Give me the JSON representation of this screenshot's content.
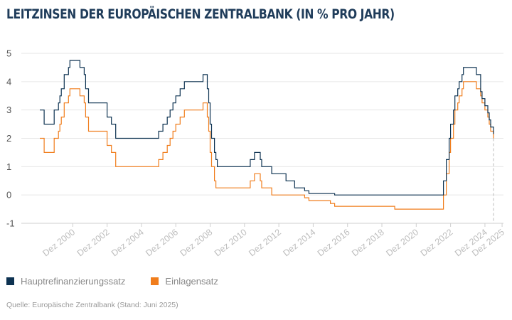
{
  "title": "LEITZINSEN DER EUROPÄISCHEN ZENTRALBANK (IN % PRO JAHR)",
  "source": "Quelle: Europäische Zentralbank (Stand: Juni 2025)",
  "legend": [
    {
      "label": "Hauptrefinanzierungssatz",
      "color": "#0d3251"
    },
    {
      "label": "Einlagensatz",
      "color": "#f07d1c"
    }
  ],
  "chart_data": {
    "type": "line",
    "title": "LEITZINSEN DER EUROPÄISCHEN ZENTRALBANK (IN % PRO JAHR)",
    "xlabel": "",
    "ylabel": "",
    "ylim": [
      -1,
      5
    ],
    "xlim": [
      "1998-09",
      "2025-06"
    ],
    "yticks": [
      -1,
      0,
      1,
      2,
      3,
      4,
      5
    ],
    "xticks": [
      {
        "label": "Dez 2000",
        "date": "2000-12"
      },
      {
        "label": "Dez 2002",
        "date": "2002-12"
      },
      {
        "label": "Dez 2004",
        "date": "2004-12"
      },
      {
        "label": "Dez 2006",
        "date": "2006-12"
      },
      {
        "label": "Dez 2008",
        "date": "2008-12"
      },
      {
        "label": "Dez 2010",
        "date": "2010-12"
      },
      {
        "label": "Dez 2012",
        "date": "2012-12"
      },
      {
        "label": "Dez 2014",
        "date": "2014-12"
      },
      {
        "label": "Dez 2016",
        "date": "2016-12"
      },
      {
        "label": "Dez 2018",
        "date": "2018-12"
      },
      {
        "label": "Dez 2020",
        "date": "2020-12"
      },
      {
        "label": "Dez 2022",
        "date": "2022-12"
      },
      {
        "label": "Dez 2024",
        "date": "2024-12"
      },
      {
        "label": "Dez 2025",
        "date": "2025-12"
      }
    ],
    "grid": "horizontal",
    "legend_position": "bottom-left",
    "marker_line_date": "2025-06",
    "series": [
      {
        "name": "Hauptrefinanzierungssatz",
        "color": "#0d3251",
        "points": [
          [
            "1999-01",
            3.0
          ],
          [
            "1999-04",
            2.5
          ],
          [
            "1999-11",
            3.0
          ],
          [
            "2000-02",
            3.25
          ],
          [
            "2000-03",
            3.5
          ],
          [
            "2000-04",
            3.75
          ],
          [
            "2000-06",
            4.25
          ],
          [
            "2000-09",
            4.5
          ],
          [
            "2000-10",
            4.75
          ],
          [
            "2001-05",
            4.5
          ],
          [
            "2001-08",
            4.25
          ],
          [
            "2001-09",
            3.75
          ],
          [
            "2001-11",
            3.25
          ],
          [
            "2002-12",
            2.75
          ],
          [
            "2003-03",
            2.5
          ],
          [
            "2003-06",
            2.0
          ],
          [
            "2005-12",
            2.25
          ],
          [
            "2006-03",
            2.5
          ],
          [
            "2006-06",
            2.75
          ],
          [
            "2006-08",
            3.0
          ],
          [
            "2006-10",
            3.25
          ],
          [
            "2006-12",
            3.5
          ],
          [
            "2007-03",
            3.75
          ],
          [
            "2007-06",
            4.0
          ],
          [
            "2008-07",
            4.25
          ],
          [
            "2008-10",
            3.75
          ],
          [
            "2008-11",
            3.25
          ],
          [
            "2008-12",
            2.5
          ],
          [
            "2009-01",
            2.0
          ],
          [
            "2009-03",
            1.5
          ],
          [
            "2009-04",
            1.25
          ],
          [
            "2009-05",
            1.0
          ],
          [
            "2011-04",
            1.25
          ],
          [
            "2011-07",
            1.5
          ],
          [
            "2011-11",
            1.25
          ],
          [
            "2011-12",
            1.0
          ],
          [
            "2012-07",
            0.75
          ],
          [
            "2013-05",
            0.5
          ],
          [
            "2013-11",
            0.25
          ],
          [
            "2014-06",
            0.15
          ],
          [
            "2014-09",
            0.05
          ],
          [
            "2016-03",
            0.0
          ],
          [
            "2022-07",
            0.5
          ],
          [
            "2022-09",
            1.25
          ],
          [
            "2022-11",
            2.0
          ],
          [
            "2022-12",
            2.5
          ],
          [
            "2023-02",
            3.0
          ],
          [
            "2023-03",
            3.5
          ],
          [
            "2023-05",
            3.75
          ],
          [
            "2023-06",
            4.0
          ],
          [
            "2023-08",
            4.25
          ],
          [
            "2023-09",
            4.5
          ],
          [
            "2024-06",
            4.25
          ],
          [
            "2024-09",
            3.65
          ],
          [
            "2024-10",
            3.4
          ],
          [
            "2024-12",
            3.15
          ],
          [
            "2025-02",
            2.9
          ],
          [
            "2025-03",
            2.65
          ],
          [
            "2025-04",
            2.4
          ],
          [
            "2025-06",
            2.15
          ]
        ]
      },
      {
        "name": "Einlagensatz",
        "color": "#f07d1c",
        "points": [
          [
            "1999-01",
            2.0
          ],
          [
            "1999-04",
            1.5
          ],
          [
            "1999-11",
            2.0
          ],
          [
            "2000-02",
            2.25
          ],
          [
            "2000-03",
            2.5
          ],
          [
            "2000-04",
            2.75
          ],
          [
            "2000-06",
            3.25
          ],
          [
            "2000-09",
            3.5
          ],
          [
            "2000-10",
            3.75
          ],
          [
            "2001-05",
            3.5
          ],
          [
            "2001-08",
            3.25
          ],
          [
            "2001-09",
            2.75
          ],
          [
            "2001-11",
            2.25
          ],
          [
            "2002-12",
            1.75
          ],
          [
            "2003-03",
            1.5
          ],
          [
            "2003-06",
            1.0
          ],
          [
            "2005-12",
            1.25
          ],
          [
            "2006-03",
            1.5
          ],
          [
            "2006-06",
            1.75
          ],
          [
            "2006-08",
            2.0
          ],
          [
            "2006-10",
            2.25
          ],
          [
            "2006-12",
            2.5
          ],
          [
            "2007-03",
            2.75
          ],
          [
            "2007-06",
            3.0
          ],
          [
            "2008-07",
            3.25
          ],
          [
            "2008-10",
            2.75
          ],
          [
            "2008-11",
            2.25
          ],
          [
            "2008-12",
            1.5
          ],
          [
            "2009-01",
            1.0
          ],
          [
            "2009-03",
            0.5
          ],
          [
            "2009-04",
            0.25
          ],
          [
            "2011-04",
            0.5
          ],
          [
            "2011-07",
            0.75
          ],
          [
            "2011-11",
            0.5
          ],
          [
            "2011-12",
            0.25
          ],
          [
            "2012-07",
            0.0
          ],
          [
            "2014-06",
            -0.1
          ],
          [
            "2014-09",
            -0.2
          ],
          [
            "2015-12",
            -0.3
          ],
          [
            "2016-03",
            -0.4
          ],
          [
            "2019-09",
            -0.5
          ],
          [
            "2022-07",
            0.0
          ],
          [
            "2022-09",
            0.75
          ],
          [
            "2022-11",
            1.5
          ],
          [
            "2022-12",
            2.0
          ],
          [
            "2023-02",
            2.5
          ],
          [
            "2023-03",
            3.0
          ],
          [
            "2023-05",
            3.25
          ],
          [
            "2023-06",
            3.5
          ],
          [
            "2023-08",
            3.75
          ],
          [
            "2023-09",
            4.0
          ],
          [
            "2024-06",
            3.75
          ],
          [
            "2024-09",
            3.5
          ],
          [
            "2024-10",
            3.25
          ],
          [
            "2024-12",
            3.0
          ],
          [
            "2025-02",
            2.75
          ],
          [
            "2025-03",
            2.5
          ],
          [
            "2025-04",
            2.25
          ],
          [
            "2025-06",
            2.0
          ]
        ]
      }
    ]
  }
}
